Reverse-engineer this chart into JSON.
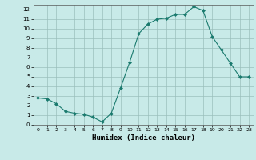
{
  "x": [
    0,
    1,
    2,
    3,
    4,
    5,
    6,
    7,
    8,
    9,
    10,
    11,
    12,
    13,
    14,
    15,
    16,
    17,
    18,
    19,
    20,
    21,
    22,
    23
  ],
  "y": [
    2.8,
    2.7,
    2.2,
    1.4,
    1.2,
    1.1,
    0.8,
    0.3,
    1.2,
    3.8,
    6.5,
    9.5,
    10.5,
    11.0,
    11.1,
    11.5,
    11.5,
    12.3,
    11.9,
    9.2,
    7.8,
    6.4,
    5.0,
    5.0
  ],
  "line_color": "#1a7a6e",
  "marker_color": "#1a7a6e",
  "bg_color": "#c8eae8",
  "grid_color": "#9bbfbc",
  "xlabel": "Humidex (Indice chaleur)",
  "xlim": [
    -0.5,
    23.5
  ],
  "ylim": [
    0,
    12.5
  ],
  "yticks": [
    0,
    1,
    2,
    3,
    4,
    5,
    6,
    7,
    8,
    9,
    10,
    11,
    12
  ],
  "xticks": [
    0,
    1,
    2,
    3,
    4,
    5,
    6,
    7,
    8,
    9,
    10,
    11,
    12,
    13,
    14,
    15,
    16,
    17,
    18,
    19,
    20,
    21,
    22,
    23
  ]
}
